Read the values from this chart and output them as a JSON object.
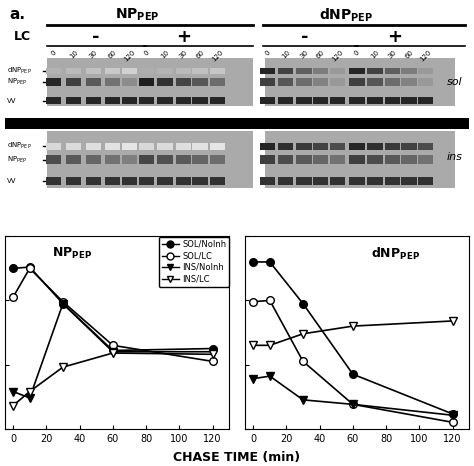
{
  "panel_b": {
    "x_values": [
      0,
      10,
      30,
      60,
      120
    ],
    "np_sol_noinh": [
      2500,
      2520,
      1950,
      1220,
      1250
    ],
    "np_sol_lc": [
      2050,
      2500,
      1980,
      1300,
      1050
    ],
    "np_ins_noinh": [
      580,
      480,
      1950,
      1200,
      1200
    ],
    "np_ins_lc": [
      360,
      580,
      960,
      1180,
      1160
    ],
    "dnp_sol_noinh": [
      2600,
      2600,
      1950,
      850,
      230
    ],
    "dnp_sol_lc": [
      1980,
      2000,
      1050,
      380,
      100
    ],
    "dnp_ins_noinh": [
      780,
      820,
      450,
      380,
      210
    ],
    "dnp_ins_lc": [
      1300,
      1300,
      1480,
      1600,
      1680
    ],
    "ylim": [
      0,
      3000
    ],
    "yticks": [
      0,
      1000,
      2000,
      3000
    ],
    "xlim": [
      -5,
      130
    ],
    "xticks": [
      0,
      20,
      40,
      60,
      80,
      100,
      120
    ],
    "xlabel": "CHASE TIME (min)"
  },
  "panel_a": {
    "time_points": [
      "0",
      "10",
      "30",
      "60",
      "120"
    ]
  },
  "bg_color": "#ffffff"
}
